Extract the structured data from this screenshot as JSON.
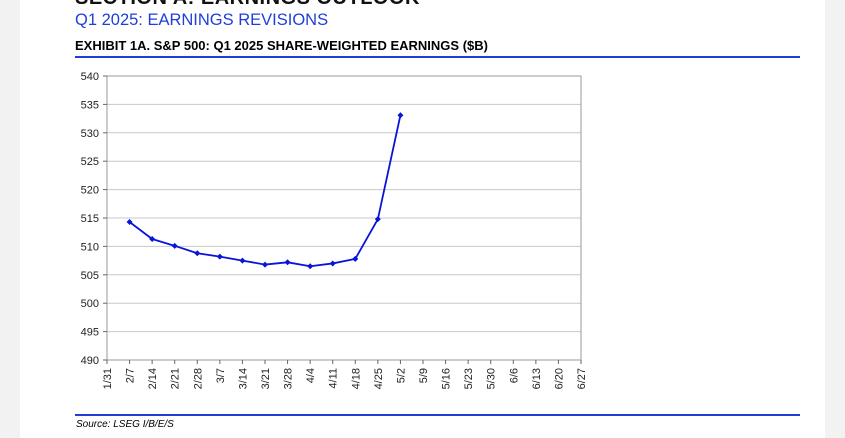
{
  "header": {
    "section_cut_text": "SECTION A: EARNINGS OUTLOOK",
    "section_title": "Q1 2025: EARNINGS REVISIONS",
    "exhibit_title": "EXHIBIT 1A.  S&P 500: Q1 2025 SHARE-WEIGHTED EARNINGS ($B)"
  },
  "footer": {
    "source": "Source: LSEG I/B/E/S"
  },
  "colors": {
    "accent": "#1f3fd6",
    "series": "#0a14d9",
    "grid": "#c8c8c8"
  },
  "chart_data": {
    "type": "line",
    "title": "",
    "xlabel": "",
    "ylabel": "",
    "ylim": [
      490,
      540
    ],
    "yticks": [
      490,
      495,
      500,
      505,
      510,
      515,
      520,
      525,
      530,
      535,
      540
    ],
    "categories": [
      "1/31",
      "2/7",
      "2/14",
      "2/21",
      "2/28",
      "3/7",
      "3/14",
      "3/21",
      "3/28",
      "4/4",
      "4/11",
      "4/18",
      "4/25",
      "5/2",
      "5/9",
      "5/16",
      "5/23",
      "5/30",
      "6/6",
      "6/13",
      "6/20",
      "6/27"
    ],
    "series": [
      {
        "values": [
          null,
          514.3,
          511.3,
          510.1,
          508.8,
          508.2,
          507.5,
          506.8,
          507.2,
          506.5,
          507.0,
          507.8,
          514.8,
          533.1,
          null,
          null,
          null,
          null,
          null,
          null,
          null,
          null
        ]
      }
    ],
    "grid": "horizontal",
    "legend": "none"
  }
}
